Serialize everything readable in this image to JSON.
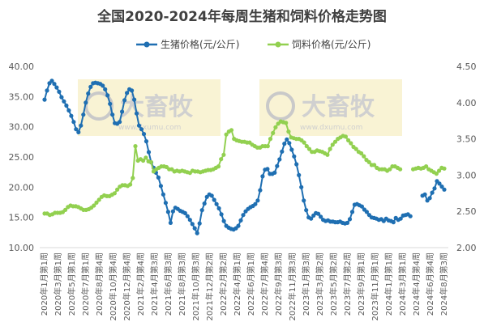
{
  "chart_data": {
    "type": "line",
    "title": "全国2020-2024年每周生猪和饲料价格走势图",
    "watermark": "大畜牧 www.dxumu.com",
    "y_left": {
      "ticks": [
        "40.00",
        "35.00",
        "30.00",
        "25.00",
        "20.00",
        "15.00",
        "10.00"
      ],
      "ylim": [
        10,
        40
      ]
    },
    "y_right": {
      "ticks": [
        "4.50",
        "4.00",
        "3.50",
        "3.00",
        "2.50",
        "2.00"
      ],
      "ylim": [
        2.0,
        4.5
      ]
    },
    "x_tick_labels": [
      "2020年1月第1周",
      "2020年3月第1周",
      "2020年5月第1周",
      "2020年7月第1周",
      "2020年8月第4周",
      "2020年10月第4周",
      "2020年12月第4周",
      "2021年2月第4周",
      "2021年4月第3周",
      "2021年6月第3周",
      "2021年8月第3周",
      "2021年10月第3周",
      "2021年12月第2周",
      "2022年2月第2周",
      "2022年4月第1周",
      "2022年6月第1周",
      "2022年7月第4周",
      "2022年9月第3周",
      "2022年11月第3周",
      "2023年1月第3周",
      "2023年3月第2周",
      "2023年5月第2周",
      "2023年7月第2周",
      "2023年9月第1周",
      "2023年11月第1周",
      "2024年1月第1周",
      "2024年3月第1周",
      "2024年4月第4周",
      "2024年6月第4周",
      "2024年8月第3周"
    ],
    "series": [
      {
        "name": "生猪价格(元/公斤)",
        "axis": "left",
        "color": "#1f6fb2",
        "segments": [
          [
            34.5,
            36.0,
            37.2,
            37.6,
            37.1,
            36.5,
            35.8,
            34.9,
            34.2,
            33.5,
            32.7,
            31.8,
            30.8,
            29.6,
            29.1,
            30.2,
            32.0,
            34.0,
            35.5,
            36.6,
            37.2,
            37.3,
            37.2,
            37.1,
            36.8,
            36.2,
            35.2,
            33.8,
            32.0,
            30.6,
            30.5,
            30.8,
            32.5,
            34.4,
            35.6,
            36.2,
            36.0,
            34.5,
            32.2,
            30.2,
            29.6,
            28.8,
            27.6,
            25.8,
            24.1,
            23.2,
            22.4,
            21.6,
            20.2,
            18.8,
            17.4,
            15.9,
            14.1,
            16.0,
            16.6,
            16.4,
            16.1,
            15.9,
            15.7,
            15.2,
            14.6,
            13.9,
            13.2,
            12.4,
            14.0,
            16.2,
            17.3,
            18.4,
            18.8,
            18.6,
            17.9,
            17.2,
            16.5,
            15.5,
            14.4,
            13.6,
            13.3,
            13.1,
            13.0,
            13.2,
            13.6,
            14.5,
            15.4,
            16.0,
            16.4,
            16.7,
            16.9,
            17.2,
            17.8,
            19.5,
            21.8,
            22.9,
            23.0,
            22.2,
            22.2,
            22.4,
            23.5,
            24.6,
            25.9,
            27.2,
            27.9,
            27.3,
            26.2,
            25.1,
            23.8,
            22.0,
            20.0,
            17.8,
            16.2,
            15.0,
            14.8,
            15.3,
            15.7,
            15.6,
            15.1,
            14.6,
            14.4,
            14.5,
            14.3,
            14.3,
            14.2,
            14.2,
            14.3,
            14.1,
            14.0,
            14.1,
            14.7,
            15.9,
            17.1,
            17.2,
            17.0,
            16.8,
            16.3,
            15.9,
            15.4,
            15.0,
            14.9,
            14.8,
            14.6,
            14.7,
            14.4,
            14.8,
            14.5,
            14.4,
            14.2,
            14.9,
            14.6,
            14.8,
            15.3,
            15.4,
            15.5,
            15.2
          ],
          [
            18.6,
            18.8,
            17.8,
            18.2,
            19.1,
            19.8,
            21.0,
            20.6,
            20.1,
            19.6
          ]
        ]
      },
      {
        "name": "饲料价格(元/公斤)",
        "axis": "right",
        "color": "#92d050",
        "segments": [
          [
            2.47,
            2.47,
            2.45,
            2.46,
            2.48,
            2.48,
            2.48,
            2.49,
            2.52,
            2.56,
            2.58,
            2.57,
            2.57,
            2.56,
            2.54,
            2.52,
            2.52,
            2.53,
            2.55,
            2.58,
            2.62,
            2.66,
            2.7,
            2.72,
            2.71,
            2.71,
            2.73,
            2.75,
            2.8,
            2.84,
            2.86,
            2.86,
            2.85,
            2.87,
            2.96,
            3.4,
            3.2,
            3.22,
            3.2,
            3.24,
            3.19,
            3.18,
            3.05,
            3.08,
            3.1,
            3.12,
            3.12,
            3.11,
            3.08,
            3.08,
            3.05,
            3.06,
            3.05,
            3.06,
            3.05,
            3.04,
            3.03,
            3.06,
            3.05,
            3.05,
            3.04,
            3.05,
            3.06,
            3.07,
            3.07,
            3.08,
            3.1,
            3.12,
            3.22,
            3.28,
            3.56,
            3.6,
            3.62,
            3.5,
            3.48,
            3.47,
            3.46,
            3.46,
            3.45,
            3.45,
            3.42,
            3.4,
            3.38,
            3.38,
            3.4,
            3.4,
            3.4,
            3.5,
            3.58,
            3.66,
            3.71,
            3.74,
            3.73,
            3.72,
            3.6,
            3.52,
            3.51,
            3.5,
            3.5,
            3.48,
            3.45,
            3.4,
            3.36,
            3.32,
            3.32,
            3.34,
            3.33,
            3.32,
            3.3,
            3.28,
            3.36,
            3.42,
            3.46,
            3.5,
            3.52,
            3.54,
            3.53,
            3.48,
            3.44,
            3.39,
            3.36,
            3.32,
            3.3,
            3.26,
            3.21,
            3.18,
            3.14,
            3.14,
            3.1,
            3.08,
            3.08,
            3.08,
            3.06,
            3.08,
            3.12,
            3.12,
            3.1,
            3.08
          ],
          [
            3.08,
            3.09,
            3.1,
            3.09,
            3.1,
            3.12,
            3.08,
            3.06,
            3.04,
            3.02,
            3.06,
            3.1,
            3.09
          ]
        ]
      }
    ]
  }
}
